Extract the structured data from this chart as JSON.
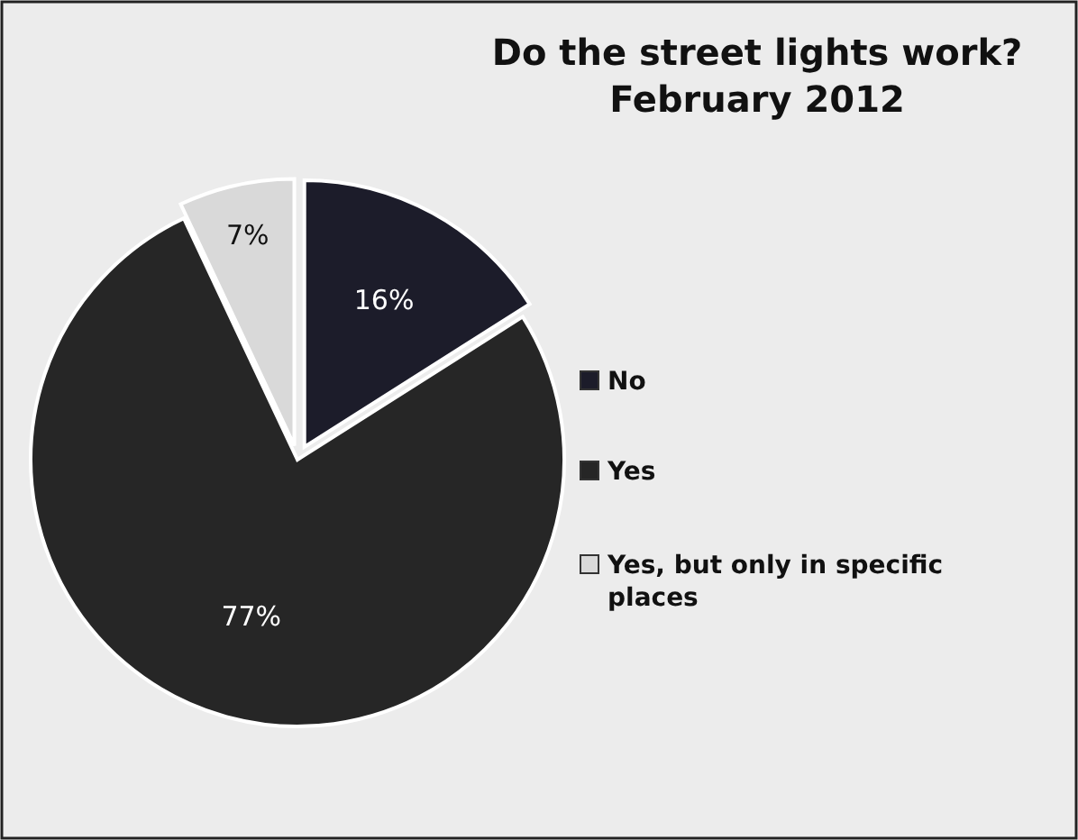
{
  "chart_data": {
    "type": "pie",
    "title": "Do the street lights work?\nFebruary 2012",
    "categories": [
      "No",
      "Yes",
      "Yes, but only in specific places"
    ],
    "values": [
      16,
      77,
      7
    ],
    "value_labels": [
      "16%",
      "77%",
      "7%"
    ],
    "colors": [
      "#1c1c2a",
      "#262626",
      "#d9d9d9"
    ],
    "legend": "right"
  }
}
